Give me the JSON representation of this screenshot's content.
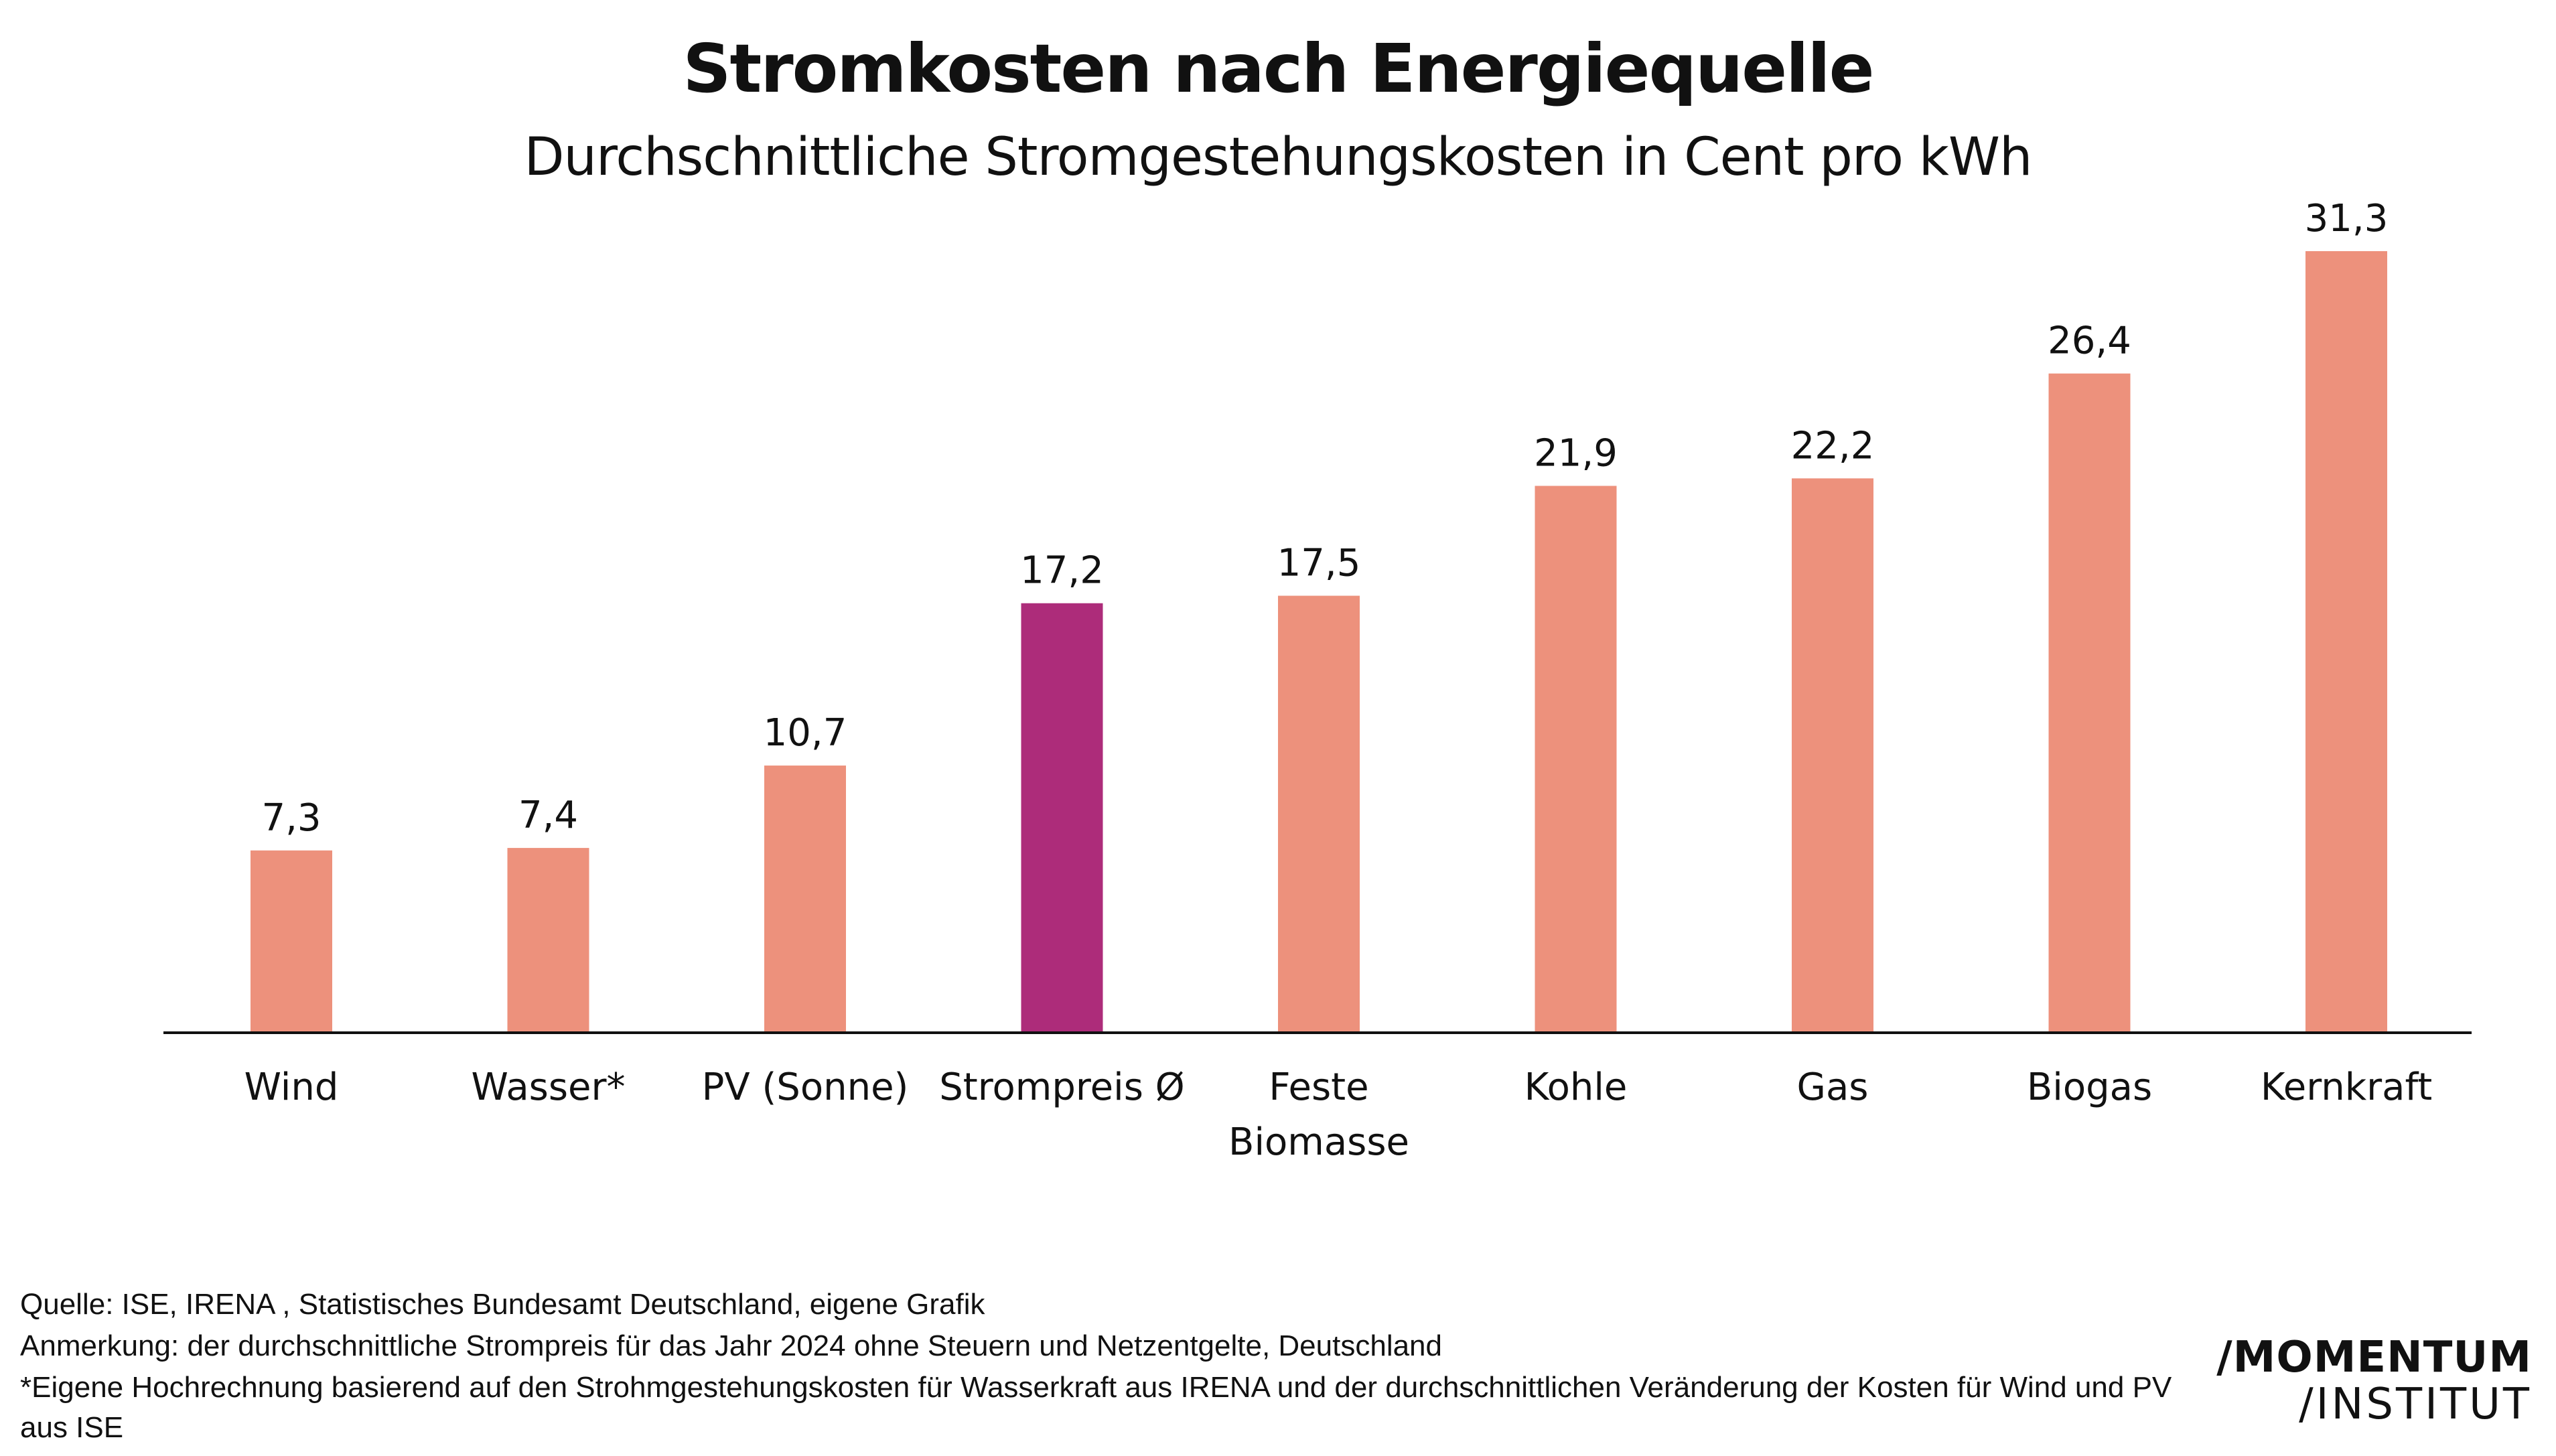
{
  "colors": {
    "bar": "#ED917C",
    "highlight": "#AD2C7A",
    "text": "#111111",
    "axis": "#111111"
  },
  "chart_data": {
    "type": "bar",
    "title": "Stromkosten nach Energiequelle",
    "subtitle": "Durchschnittliche Stromgestehungskosten in Cent pro kWh",
    "categories": [
      [
        "Wind"
      ],
      [
        "Wasser*"
      ],
      [
        "PV (Sonne)"
      ],
      [
        "Strompreis Ø"
      ],
      [
        "Feste",
        "Biomasse"
      ],
      [
        "Kohle"
      ],
      [
        "Gas"
      ],
      [
        "Biogas"
      ],
      [
        "Kernkraft"
      ]
    ],
    "values": [
      7.3,
      7.4,
      10.7,
      17.2,
      17.5,
      21.9,
      22.2,
      26.4,
      31.3
    ],
    "value_labels": [
      "7,3",
      "7,4",
      "10,7",
      "17,2",
      "17,5",
      "21,9",
      "22,2",
      "26,4",
      "31,3"
    ],
    "highlight_index": 3,
    "ylim": [
      0,
      31.3
    ],
    "xlabel": "",
    "ylabel": "",
    "grid": false,
    "legend": "none"
  },
  "footer": {
    "source": "Quelle: ISE, IRENA , Statistisches Bundesamt Deutschland, eigene Grafik",
    "note": "Anmerkung: der durchschnittliche Strompreis für das Jahr 2024 ohne Steuern und Netzentgelte, Deutschland",
    "asterisk_line1": "*Eigene Hochrechnung  basierend auf den  Strohmgestehungskosten für Wasserkraft aus IRENA  und der durchschnittlichen Veränderung der Kosten für Wind und PV",
    "asterisk_line2": "aus ISE"
  },
  "logo": {
    "line1": "/MOMENTUM",
    "line2": "/INSTITUT"
  }
}
